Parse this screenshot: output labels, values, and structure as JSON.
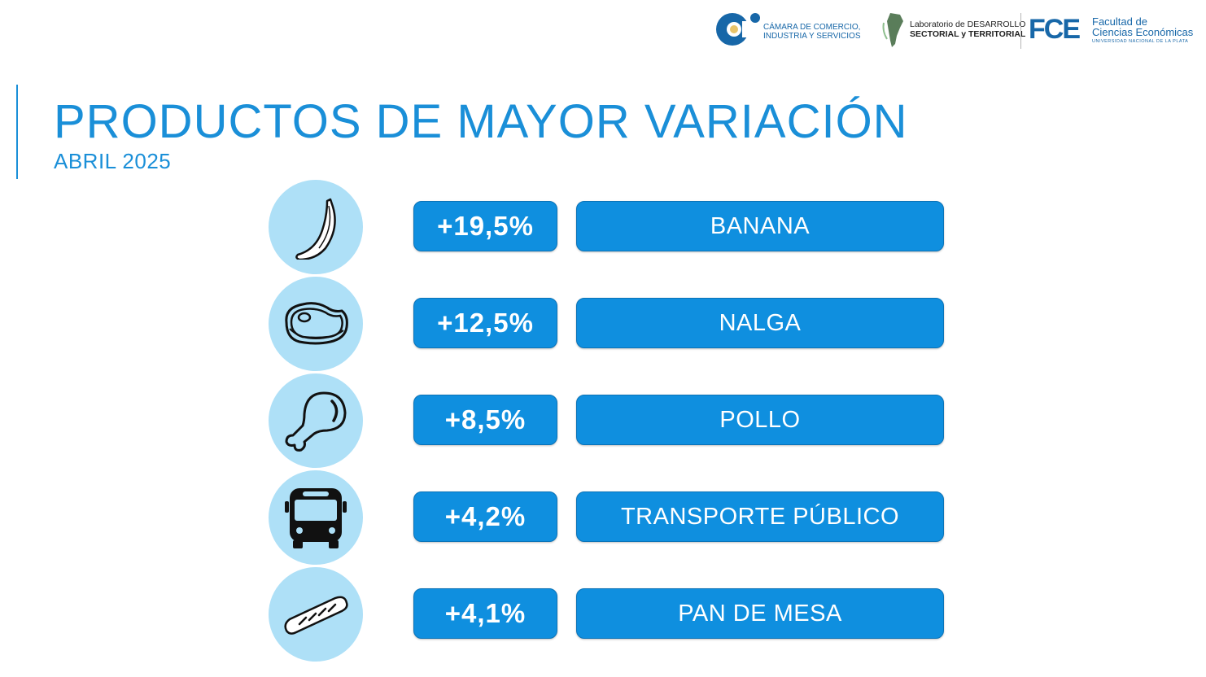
{
  "header": {
    "title": "PRODUCTOS DE MAYOR VARIACIÓN",
    "subtitle": "ABRIL 2025"
  },
  "logos": {
    "camara": {
      "line1": "CÁMARA DE COMERCIO,",
      "line2": "INDUSTRIA Y SERVICIOS"
    },
    "laboratorio": {
      "line1": "Laboratorio de DESARROLLO",
      "line2": "SECTORIAL y TERRITORIAL"
    },
    "fce": {
      "mark": "FCE",
      "line1": "Facultad de",
      "line2": "Ciencias Económicas",
      "line3": "UNIVERSIDAD NACIONAL DE LA PLATA"
    }
  },
  "colors": {
    "accent": "#1a8fd8",
    "pill": "#0f8fdf",
    "icon_circle": "#aee0f7"
  },
  "products": [
    {
      "icon": "banana-icon",
      "variation": "+19,5%",
      "name": "BANANA"
    },
    {
      "icon": "meat-steak-icon",
      "variation": "+12,5%",
      "name": "NALGA"
    },
    {
      "icon": "chicken-leg-icon",
      "variation": "+8,5%",
      "name": "POLLO"
    },
    {
      "icon": "bus-icon",
      "variation": "+4,2%",
      "name": "TRANSPORTE PÚBLICO"
    },
    {
      "icon": "bread-loaf-icon",
      "variation": "+4,1%",
      "name": "PAN DE MESA"
    }
  ]
}
